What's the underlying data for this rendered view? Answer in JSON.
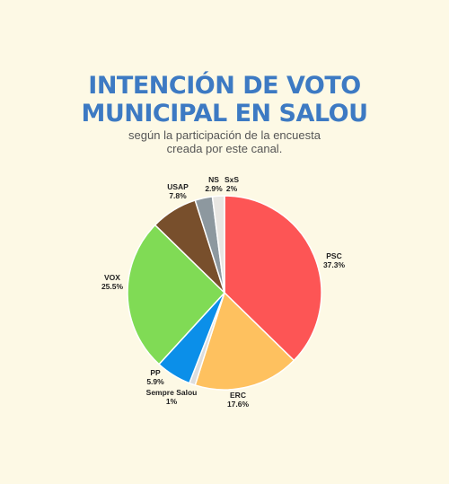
{
  "header": {
    "title_line1": "INTENCIÓN DE VOTO",
    "title_line2": "MUNICIPAL EN SALOU",
    "subtitle_line1": "según la participación de la encuesta",
    "subtitle_line2": "creada por este canal."
  },
  "chart_data": {
    "type": "pie",
    "title": "INTENCIÓN DE VOTO MUNICIPAL EN SALOU",
    "subtitle": "según la participación de la encuesta creada por este canal.",
    "legend": "none",
    "slices": [
      {
        "name": "PSC",
        "value": 37.3,
        "label": "37.3%",
        "color": "#fd5555"
      },
      {
        "name": "ERC",
        "value": 17.6,
        "label": "17.6%",
        "color": "#fec15f"
      },
      {
        "name": "Sempre Salou",
        "value": 1,
        "label": "1%",
        "color": "#dddddd"
      },
      {
        "name": "PP",
        "value": 5.9,
        "label": "5.9%",
        "color": "#0b8fe9"
      },
      {
        "name": "VOX",
        "value": 25.5,
        "label": "25.5%",
        "color": "#80db55"
      },
      {
        "name": "USAP",
        "value": 7.8,
        "label": "7.8%",
        "color": "#784f2c"
      },
      {
        "name": "NS",
        "value": 2.9,
        "label": "2.9%",
        "color": "#8d989f"
      },
      {
        "name": "SxS",
        "value": 2,
        "label": "2%",
        "color": "#e8e6e2"
      }
    ]
  }
}
